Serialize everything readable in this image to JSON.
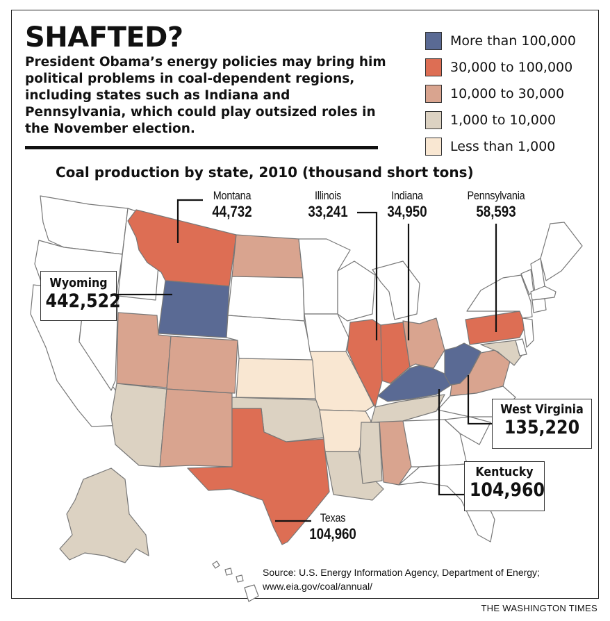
{
  "headline": "SHAFTED?",
  "dek": "President Obama’s energy policies may bring him political problems in coal-dependent regions, including states such as Indiana and Pennsylvania, which could play outsized roles in the November election.",
  "map_title": "Coal production by state, 2010 (thousand short tons)",
  "legend": [
    {
      "label": "More than 100,000",
      "color": "#5a6a94"
    },
    {
      "label": "30,000 to 100,000",
      "color": "#dd6e54"
    },
    {
      "label": "10,000 to 30,000",
      "color": "#d9a48f"
    },
    {
      "label": "1,000 to 10,000",
      "color": "#dcd2c2"
    },
    {
      "label": "Less than 1,000",
      "color": "#f9e7d2"
    }
  ],
  "callouts": {
    "montana": {
      "name": "Montana",
      "value": "44,732"
    },
    "illinois": {
      "name": "Illinois",
      "value": "33,241"
    },
    "indiana": {
      "name": "Indiana",
      "value": "34,950"
    },
    "pennsylvania": {
      "name": "Pennsylvania",
      "value": "58,593"
    },
    "wyoming": {
      "name": "Wyoming",
      "value": "442,522"
    },
    "west_virginia": {
      "name": "West Virginia",
      "value": "135,220"
    },
    "kentucky": {
      "name": "Kentucky",
      "value": "104,960"
    },
    "texas": {
      "name": "Texas",
      "value": "104,960"
    }
  },
  "source": {
    "line1": "Source: U.S. Energy Information Agency, Department of Energy;",
    "line2": "www.eia.gov/coal/annual/"
  },
  "credit": "THE WASHINGTON TIMES"
}
